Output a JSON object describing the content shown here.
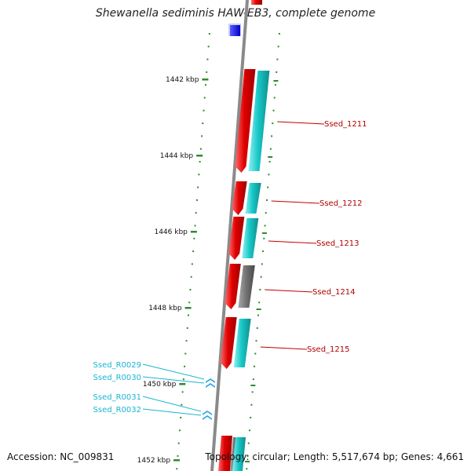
{
  "title": "Shewanella sediminis HAW-EB3, complete genome",
  "footer": {
    "accession": "Accession: NC_009831",
    "summary": "Topology: circular; Length: 5,517,674 bp; Genes: 4,661"
  },
  "colors": {
    "backbone": "#8a8a8a",
    "forward_cds": "#e00000",
    "reverse_cds": "#18c8c8",
    "pseudo_cds": "#707070",
    "rna": "#2aa7e6",
    "tick": "#2e8b2e",
    "gene_label": "#b00000",
    "rna_label": "#19b4d2"
  },
  "ruler": [
    {
      "label": "1442 kbp"
    },
    {
      "label": "1444 kbp"
    },
    {
      "label": "1446 kbp"
    },
    {
      "label": "1448 kbp"
    },
    {
      "label": "1450 kbp"
    },
    {
      "label": "1452 kbp"
    }
  ],
  "genes": [
    {
      "label": "Ssed_1211"
    },
    {
      "label": "Ssed_1212"
    },
    {
      "label": "Ssed_1213"
    },
    {
      "label": "Ssed_1214"
    },
    {
      "label": "Ssed_1215"
    }
  ],
  "rnas": [
    {
      "label": "Ssed_R0029"
    },
    {
      "label": "Ssed_R0030"
    },
    {
      "label": "Ssed_R0031"
    },
    {
      "label": "Ssed_R0032"
    }
  ]
}
